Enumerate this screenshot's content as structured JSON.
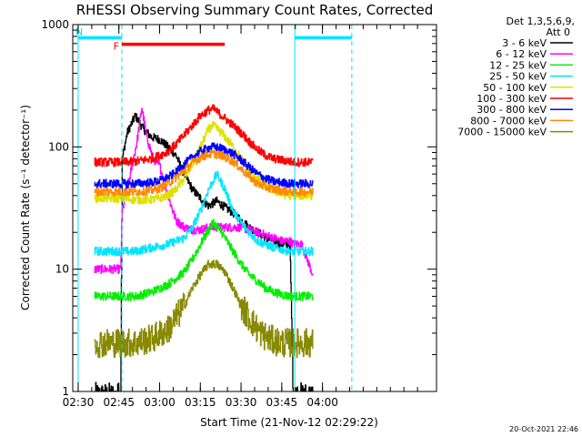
{
  "chart_data": {
    "type": "line",
    "title": "RHESSI Observing Summary Count Rates, Corrected",
    "xlabel": "Start Time (21-Nov-12 02:29:22)",
    "ylabel": "Corrected Count Rate (s⁻¹ detector⁻¹)",
    "yscale": "log",
    "ylim": [
      1,
      1000
    ],
    "xlim": [
      2.4667,
      4.7
    ],
    "xticks": [
      {
        "value": 2.5,
        "label": "02:30"
      },
      {
        "value": 2.75,
        "label": "02:45"
      },
      {
        "value": 3.0,
        "label": "03:00"
      },
      {
        "value": 3.25,
        "label": "03:15"
      },
      {
        "value": 3.5,
        "label": "03:30"
      },
      {
        "value": 3.75,
        "label": "03:45"
      },
      {
        "value": 4.0,
        "label": "04:00"
      }
    ],
    "yticks": [
      {
        "value": 1,
        "label": "1"
      },
      {
        "value": 10,
        "label": "10"
      },
      {
        "value": 100,
        "label": "100"
      },
      {
        "value": 1000,
        "label": "1000"
      }
    ],
    "legend_header": [
      "Det 1,3,5,6,9,",
      "Att 0"
    ],
    "legend_position": "right",
    "footer_date": "20-Oct-2021 22:46",
    "flags": [
      {
        "label": "F",
        "color": "#ff0000",
        "start": 2.768,
        "end": 3.4,
        "y": 690
      },
      {
        "label": "N",
        "color": "#00e5ff",
        "start": 2.5,
        "end": 2.768,
        "y": 780
      },
      {
        "label": "",
        "color": "#00e5ff",
        "start": 3.83,
        "end": 4.18,
        "y": 780
      }
    ],
    "night_lines": [
      2.5,
      2.768,
      3.83,
      4.18
    ],
    "gap_boundaries": [
      2.76,
      3.82
    ],
    "series": [
      {
        "name": "3 - 6 keV",
        "color": "#000000",
        "x": [
          2.6,
          2.76,
          2.77,
          2.8,
          2.85,
          2.9,
          2.95,
          3.0,
          3.05,
          3.1,
          3.15,
          3.2,
          3.25,
          3.3,
          3.35,
          3.4,
          3.45,
          3.5,
          3.55,
          3.6,
          3.65,
          3.7,
          3.75,
          3.8,
          3.82,
          3.87,
          3.94
        ],
        "y": [
          0.9,
          0.9,
          80,
          130,
          180,
          140,
          120,
          115,
          100,
          85,
          60,
          45,
          38,
          33,
          36,
          32,
          29,
          25,
          22,
          20,
          18,
          17,
          16,
          16,
          0.9,
          0.9,
          0.9
        ]
      },
      {
        "name": "6 - 12 keV",
        "color": "#ff00ff",
        "x": [
          2.6,
          2.76,
          2.77,
          2.82,
          2.86,
          2.89,
          2.92,
          2.96,
          3.0,
          3.05,
          3.1,
          3.15,
          3.2,
          3.25,
          3.3,
          3.33,
          3.4,
          3.45,
          3.5,
          3.55,
          3.6,
          3.65,
          3.7,
          3.75,
          3.8,
          3.82,
          3.87,
          3.94
        ],
        "y": [
          10,
          10,
          30,
          60,
          110,
          210,
          120,
          80,
          70,
          40,
          25,
          22,
          21,
          21,
          22,
          22,
          22,
          22,
          22,
          21,
          20,
          19,
          18,
          17,
          17,
          16,
          16,
          9
        ]
      },
      {
        "name": "12 - 25 keV",
        "color": "#00ee00",
        "x": [
          2.6,
          2.76,
          2.77,
          2.85,
          2.95,
          3.05,
          3.15,
          3.2,
          3.25,
          3.3,
          3.33,
          3.38,
          3.45,
          3.5,
          3.55,
          3.6,
          3.65,
          3.7,
          3.75,
          3.8,
          3.82,
          3.87,
          3.94
        ],
        "y": [
          6,
          6,
          6,
          6,
          6.5,
          7.5,
          9.5,
          12,
          16,
          21,
          24,
          20,
          14,
          11,
          9,
          8,
          7,
          6.5,
          6.2,
          6,
          6,
          6,
          6
        ]
      },
      {
        "name": "25 - 50 keV",
        "color": "#00e5ff",
        "x": [
          2.6,
          2.76,
          2.77,
          2.85,
          2.95,
          3.05,
          3.15,
          3.2,
          3.25,
          3.3,
          3.35,
          3.4,
          3.45,
          3.5,
          3.55,
          3.6,
          3.65,
          3.7,
          3.75,
          3.8,
          3.82,
          3.87,
          3.94
        ],
        "y": [
          14,
          14,
          14,
          14,
          15,
          16,
          18,
          22,
          30,
          45,
          60,
          45,
          30,
          24,
          20,
          17,
          16,
          15,
          14.5,
          14,
          14,
          14,
          14
        ]
      },
      {
        "name": "50 - 100 keV",
        "color": "#e0e000",
        "x": [
          2.6,
          2.76,
          2.77,
          2.85,
          2.95,
          3.0,
          3.05,
          3.1,
          3.15,
          3.2,
          3.25,
          3.3,
          3.33,
          3.38,
          3.45,
          3.5,
          3.55,
          3.6,
          3.65,
          3.7,
          3.75,
          3.8,
          3.82,
          3.87,
          3.94
        ],
        "y": [
          38,
          38,
          38,
          37,
          37,
          38,
          40,
          45,
          55,
          72,
          100,
          140,
          150,
          130,
          100,
          80,
          65,
          55,
          48,
          44,
          41,
          40,
          40,
          40,
          40
        ]
      },
      {
        "name": "100 - 300 keV",
        "color": "#ff0000",
        "x": [
          2.6,
          2.76,
          2.77,
          2.85,
          2.95,
          3.0,
          3.05,
          3.1,
          3.15,
          3.2,
          3.25,
          3.3,
          3.33,
          3.38,
          3.45,
          3.5,
          3.55,
          3.6,
          3.65,
          3.7,
          3.75,
          3.8,
          3.82,
          3.87,
          3.94
        ],
        "y": [
          75,
          75,
          75,
          76,
          80,
          85,
          92,
          105,
          125,
          150,
          180,
          200,
          205,
          180,
          150,
          130,
          110,
          95,
          85,
          80,
          78,
          76,
          75,
          75,
          75
        ]
      },
      {
        "name": "300 - 800 keV",
        "color": "#0000ff",
        "x": [
          2.6,
          2.76,
          2.77,
          2.85,
          2.95,
          3.0,
          3.05,
          3.1,
          3.15,
          3.2,
          3.25,
          3.3,
          3.33,
          3.38,
          3.45,
          3.5,
          3.55,
          3.6,
          3.65,
          3.7,
          3.75,
          3.8,
          3.82,
          3.87,
          3.94
        ],
        "y": [
          50,
          50,
          50,
          50,
          51,
          53,
          56,
          62,
          72,
          82,
          92,
          98,
          100,
          97,
          88,
          78,
          68,
          60,
          55,
          52,
          51,
          50,
          50,
          50,
          50
        ]
      },
      {
        "name": "800 - 7000 keV",
        "color": "#ff8800",
        "x": [
          2.6,
          2.76,
          2.77,
          2.85,
          2.95,
          3.0,
          3.05,
          3.1,
          3.15,
          3.2,
          3.25,
          3.3,
          3.33,
          3.38,
          3.45,
          3.5,
          3.55,
          3.6,
          3.65,
          3.7,
          3.75,
          3.8,
          3.82,
          3.87,
          3.94
        ],
        "y": [
          43,
          43,
          43,
          43,
          44,
          46,
          50,
          56,
          64,
          74,
          82,
          87,
          88,
          85,
          76,
          66,
          57,
          50,
          47,
          45,
          44,
          43,
          43,
          43,
          43
        ]
      },
      {
        "name": "7000 - 15000 keV",
        "color": "#888800",
        "x": [
          2.6,
          2.76,
          2.77,
          2.85,
          2.95,
          3.05,
          3.15,
          3.2,
          3.25,
          3.3,
          3.35,
          3.4,
          3.45,
          3.5,
          3.55,
          3.6,
          3.65,
          3.7,
          3.75,
          3.8,
          3.82,
          3.87,
          3.94
        ],
        "y": [
          2.5,
          2.5,
          2.5,
          2.5,
          2.7,
          3.2,
          5,
          7,
          9,
          11,
          11,
          9.5,
          7,
          5,
          4,
          3.2,
          2.8,
          2.6,
          2.5,
          2.5,
          2.5,
          2.5,
          2.5
        ]
      }
    ]
  }
}
